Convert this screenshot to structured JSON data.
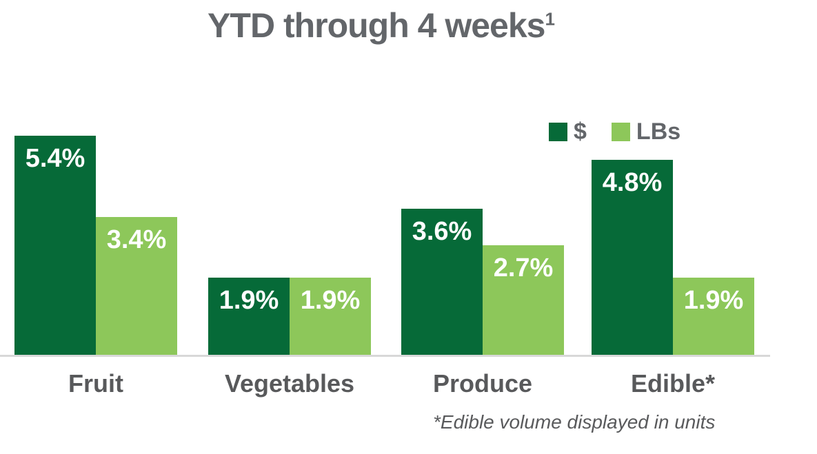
{
  "title": {
    "text": "YTD through 4 weeks",
    "superscript": "1"
  },
  "legend": [
    {
      "key": "dollars",
      "label": "$",
      "color": "#066A38"
    },
    {
      "key": "lbs",
      "label": "LBs",
      "color": "#8DC75A"
    }
  ],
  "footnote": "*Edible volume displayed in units",
  "colors": {
    "dollars_bar": "#066A38",
    "lbs_bar": "#8DC75A",
    "title_text": "#63666A",
    "category_text": "#58595B",
    "value_label_text": "#FFFFFF",
    "axis_line": "#D8D8D8"
  },
  "chart_data": {
    "type": "bar",
    "title": "YTD through 4 weeks¹",
    "categories": [
      "Fruit",
      "Vegetables",
      "Produce",
      "Edible*"
    ],
    "series": [
      {
        "key": "dollars",
        "name": "$",
        "color": "#066A38",
        "values": [
          5.4,
          1.9,
          3.6,
          4.8
        ],
        "labels": [
          "5.4%",
          "1.9%",
          "3.6%",
          "4.8%"
        ]
      },
      {
        "key": "lbs",
        "name": "LBs",
        "color": "#8DC75A",
        "values": [
          3.4,
          1.9,
          2.7,
          1.9
        ],
        "labels": [
          "3.4%",
          "1.9%",
          "2.7%",
          "1.9%"
        ]
      }
    ],
    "xlabel": "",
    "ylabel": "",
    "ylim": [
      0,
      6.4
    ],
    "grid": false,
    "y_axis_visible": false,
    "legend_position": "top-right",
    "value_labels": "inside-top",
    "footnote": "*Edible volume displayed in units"
  }
}
